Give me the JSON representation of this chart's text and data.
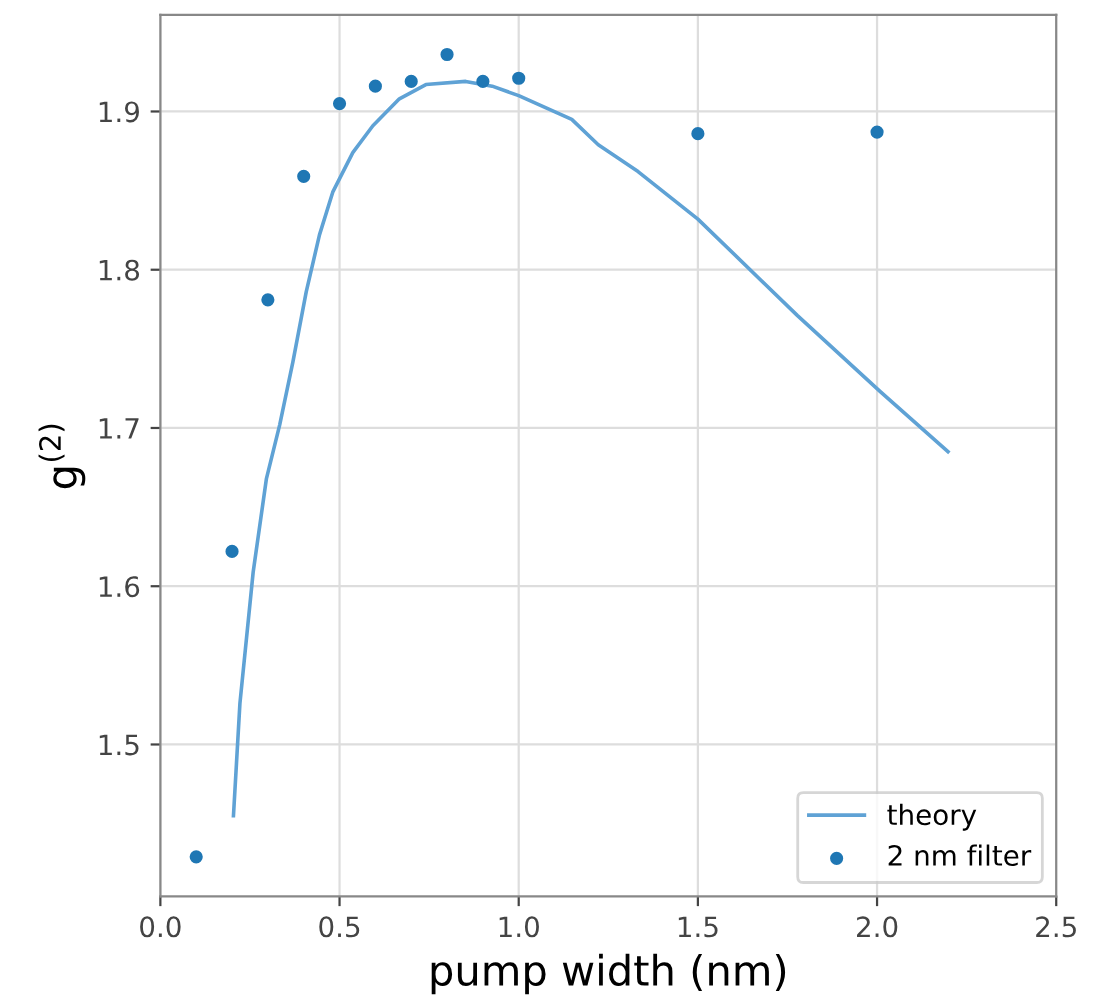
{
  "chart_data": {
    "type": "line",
    "xlabel": "pump width (nm)",
    "ylabel": "g$^{(2)}$",
    "xlim": [
      0.0,
      2.5
    ],
    "xticks": [
      {
        "value": 0.0,
        "label": "0.0"
      },
      {
        "value": 0.5,
        "label": "0.5"
      },
      {
        "value": 1.0,
        "label": "1.0"
      },
      {
        "value": 1.5,
        "label": "1.5"
      },
      {
        "value": 2.0,
        "label": "2.0"
      },
      {
        "value": 2.5,
        "label": "2.5"
      }
    ],
    "ylim": [
      1.404,
      1.961
    ],
    "yticks": [
      1.5,
      1.6,
      1.7,
      1.8,
      1.9
    ],
    "grid": true,
    "legend": "bottom right",
    "series": [
      {
        "name": "theory",
        "color": "#5fa2d5",
        "marker": "none",
        "line_style": "solid",
        "x": [
          0.204,
          0.222,
          0.259,
          0.296,
          0.333,
          0.37,
          0.407,
          0.444,
          0.481,
          0.537,
          0.593,
          0.667,
          0.741,
          0.852,
          0.926,
          1.0,
          1.148,
          1.222,
          1.333,
          1.5,
          1.778,
          2.009,
          2.198
        ],
        "values": [
          1.455,
          1.526,
          1.609,
          1.668,
          1.702,
          1.742,
          1.786,
          1.822,
          1.849,
          1.874,
          1.891,
          1.908,
          1.917,
          1.919,
          1.916,
          1.91,
          1.895,
          1.879,
          1.862,
          1.832,
          1.771,
          1.723,
          1.685
        ]
      },
      {
        "name": "2 nm filter",
        "type": "scatter",
        "color": "#1f77b4",
        "marker": "circle",
        "x": [
          0.1,
          0.2,
          0.3,
          0.4,
          0.5,
          0.6,
          0.7,
          0.8,
          0.9,
          1.0,
          1.5,
          2.0
        ],
        "values": [
          1.429,
          1.622,
          1.781,
          1.859,
          1.905,
          1.916,
          1.919,
          1.936,
          1.919,
          1.921,
          1.886,
          1.887
        ]
      }
    ]
  }
}
